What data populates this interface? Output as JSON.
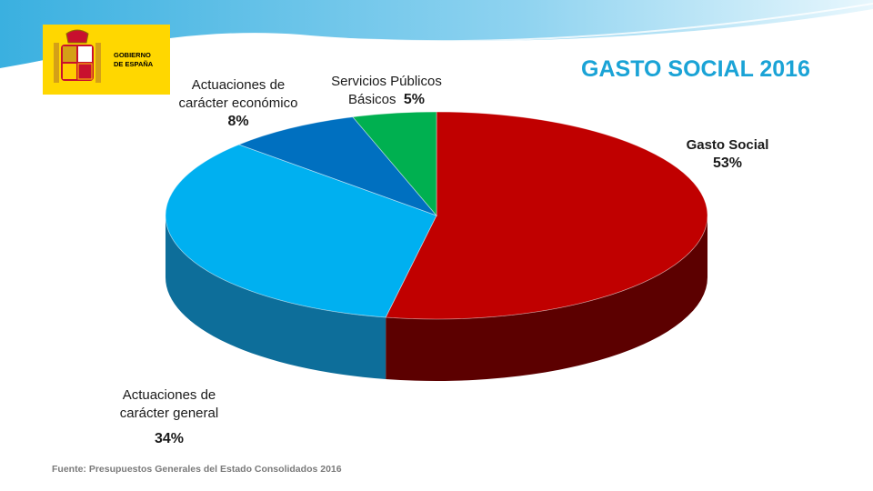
{
  "header": {
    "logo_text": "GOBIERNO\nDE ESPAÑA"
  },
  "colors": {
    "title": "#1aa3d6",
    "logo_background": "#ffd700",
    "wave": "#3ab0e0"
  },
  "chart_data": {
    "type": "pie",
    "title": "GASTO SOCIAL 2016",
    "three_d": true,
    "slices": [
      {
        "label": "Gasto Social",
        "value": 53,
        "value_label": "53%",
        "color": "#c00000",
        "side_color": "#5c0000"
      },
      {
        "label": "Actuaciones de carácter general",
        "value": 34,
        "value_label": "34%",
        "color": "#00b0f0",
        "side_color": "#0d6e9a"
      },
      {
        "label": "Actuaciones de carácter económico",
        "value": 8,
        "value_label": "8%",
        "color": "#0070c0",
        "side_color": "#003e75"
      },
      {
        "label": "Servicios Públicos Básicos",
        "value": 5,
        "value_label": "5%",
        "color": "#00b050",
        "side_color": "#006a30"
      }
    ],
    "labels": {
      "gasto_social": {
        "line1": "Gasto Social",
        "pct": "53%"
      },
      "servicios": {
        "line1": "Servicios Públicos",
        "line2": "Básicos",
        "pct": "5%"
      },
      "economico": {
        "line1": "Actuaciones de",
        "line2": "carácter económico",
        "pct": "8%"
      },
      "general": {
        "line1": "Actuaciones de",
        "line2": "carácter general",
        "pct": "34%"
      }
    },
    "source": "Fuente: Presupuestos Generales del Estado  Consolidados  2016"
  }
}
